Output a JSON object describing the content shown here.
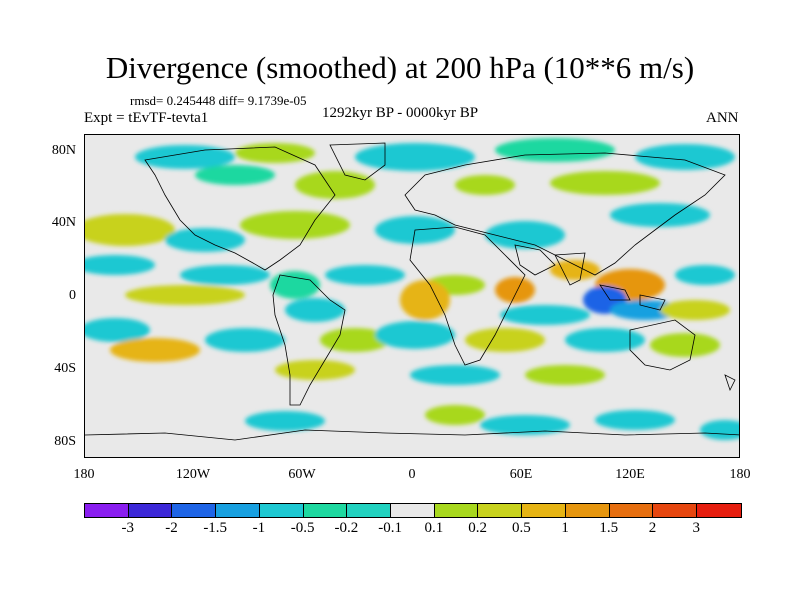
{
  "title": "Divergence (smoothed) at 200 hPa (10**6 m/s)",
  "stats": "rmsd= 0.245448 diff= 9.1739e-05",
  "experiment": "Expt = tEvTF-tevta1",
  "period": "1292kyr BP - 0000kyr BP",
  "season": "ANN",
  "lat_labels": [
    "80N",
    "40N",
    "0",
    "40S",
    "80S"
  ],
  "lon_labels": [
    "180",
    "120W",
    "60W",
    "0",
    "60E",
    "120E",
    "180"
  ],
  "colorbar": {
    "colors": [
      "#8a1ef0",
      "#3c28d8",
      "#1e64e6",
      "#18a0e0",
      "#1ec8d2",
      "#1ed8a0",
      "#e8e8e8",
      "#a8d81e",
      "#c8d21e",
      "#e6b414",
      "#e6960f",
      "#e66e0f",
      "#e6460f",
      "#e61e0f"
    ],
    "labels": [
      "-3",
      "-2",
      "-1.5",
      "-1",
      "-0.5",
      "-0.2",
      "-0.1",
      "0.1",
      "0.2",
      "0.5",
      "1",
      "1.5",
      "2",
      "3"
    ]
  }
}
